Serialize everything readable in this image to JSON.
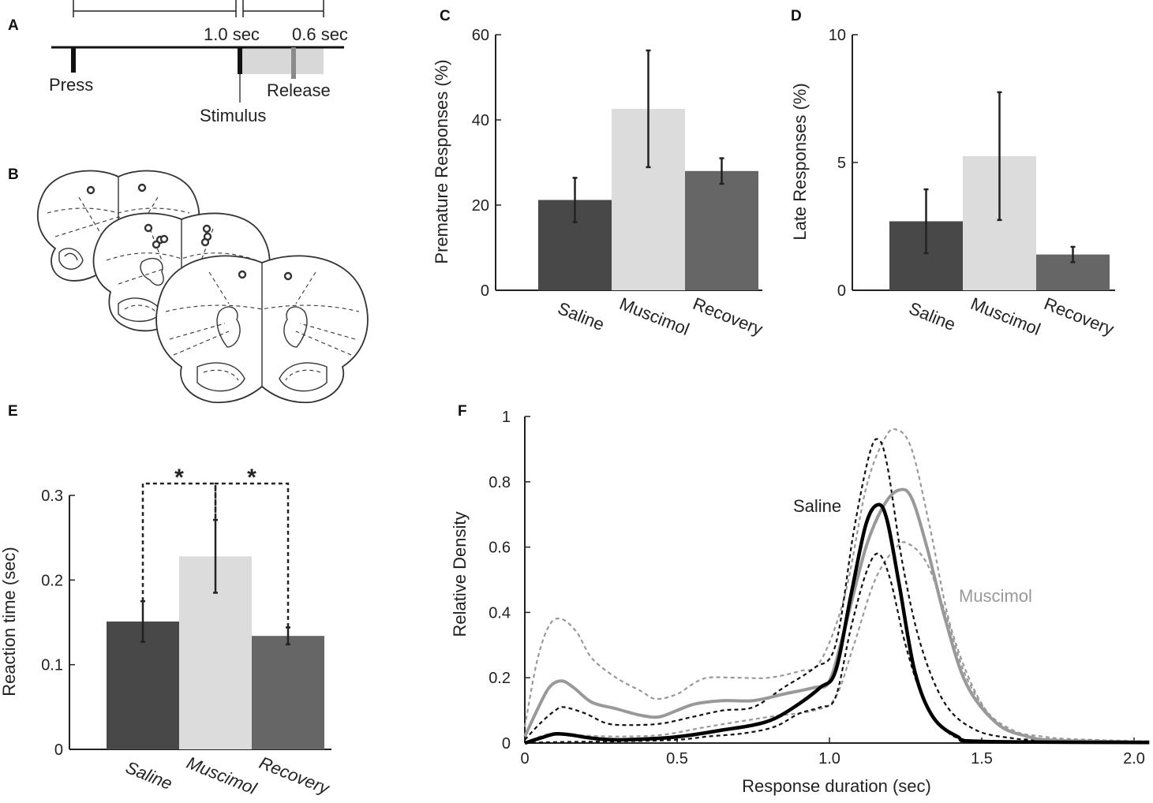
{
  "panels": {
    "a": "A",
    "b": "B",
    "c": "C",
    "d": "D",
    "e": "E",
    "f": "F"
  },
  "timeline": {
    "interval1": "1.0 sec",
    "interval2": "0.6 sec",
    "press": "Press",
    "stimulus": "Stimulus",
    "release": "Release"
  },
  "chart_data": [
    {
      "id": "C",
      "type": "bar",
      "categories": [
        "Saline",
        "Muscimol",
        "Recovery"
      ],
      "values": [
        21.2,
        42.6,
        28.0
      ],
      "errors": [
        5.2,
        13.7,
        3.0
      ],
      "colors": [
        "#484848",
        "#dcdcdc",
        "#666666"
      ],
      "ylabel": "Premature Responses (%)",
      "ylim": [
        0,
        60
      ],
      "yticks": [
        "0",
        "20",
        "40",
        "60"
      ]
    },
    {
      "id": "D",
      "type": "bar",
      "categories": [
        "Saline",
        "Muscimol",
        "Recovery"
      ],
      "values": [
        2.7,
        5.25,
        1.4
      ],
      "errors": [
        1.25,
        2.5,
        0.3
      ],
      "colors": [
        "#484848",
        "#dcdcdc",
        "#666666"
      ],
      "ylabel": "Late Responses (%)",
      "ylim": [
        0,
        10
      ],
      "yticks": [
        "0",
        "5",
        "10"
      ]
    },
    {
      "id": "E",
      "type": "bar",
      "categories": [
        "Saline",
        "Muscimol",
        "Recovery"
      ],
      "values": [
        0.151,
        0.228,
        0.134
      ],
      "errors": [
        0.024,
        0.043,
        0.01
      ],
      "colors": [
        "#484848",
        "#dcdcdc",
        "#666666"
      ],
      "ylabel": "Reaction time (sec)",
      "ylim": [
        0,
        0.3
      ],
      "yticks": [
        "0",
        "0.1",
        "0.2",
        "0.3"
      ],
      "significance": [
        {
          "from": "Saline",
          "to": "Muscimol",
          "label": "*"
        },
        {
          "from": "Muscimol",
          "to": "Recovery",
          "label": "*"
        }
      ]
    },
    {
      "id": "F",
      "type": "line",
      "xlabel": "Response duration (sec)",
      "ylabel": "Relative Density",
      "xlim": [
        0,
        2.05
      ],
      "ylim": [
        0,
        1
      ],
      "xticks": [
        "0",
        "0.5",
        "1.0",
        "1.5",
        "2.0"
      ],
      "yticks": [
        "0",
        "0.2",
        "0.4",
        "0.6",
        "0.8",
        "1"
      ],
      "series": [
        {
          "name": "Muscimol upper",
          "color": "#999999",
          "style": "dashed",
          "width": 2.2,
          "points": [
            [
              0,
              0.05
            ],
            [
              0.04,
              0.25
            ],
            [
              0.08,
              0.36
            ],
            [
              0.12,
              0.38
            ],
            [
              0.17,
              0.34
            ],
            [
              0.22,
              0.26
            ],
            [
              0.3,
              0.2
            ],
            [
              0.38,
              0.16
            ],
            [
              0.43,
              0.135
            ],
            [
              0.5,
              0.15
            ],
            [
              0.55,
              0.18
            ],
            [
              0.6,
              0.2
            ],
            [
              0.7,
              0.2
            ],
            [
              0.8,
              0.2
            ],
            [
              0.9,
              0.22
            ],
            [
              0.97,
              0.25
            ],
            [
              1.05,
              0.45
            ],
            [
              1.12,
              0.78
            ],
            [
              1.18,
              0.93
            ],
            [
              1.22,
              0.96
            ],
            [
              1.27,
              0.9
            ],
            [
              1.33,
              0.66
            ],
            [
              1.4,
              0.35
            ],
            [
              1.5,
              0.12
            ],
            [
              1.6,
              0.04
            ],
            [
              1.7,
              0.02
            ],
            [
              1.8,
              0.012
            ],
            [
              2.05,
              0.005
            ]
          ]
        },
        {
          "name": "Muscimol lower",
          "color": "#999999",
          "style": "dashed",
          "width": 2.2,
          "points": [
            [
              0,
              0
            ],
            [
              0.05,
              0.02
            ],
            [
              0.1,
              0.03
            ],
            [
              0.15,
              0.025
            ],
            [
              0.3,
              0.02
            ],
            [
              0.45,
              0.025
            ],
            [
              0.6,
              0.05
            ],
            [
              0.8,
              0.08
            ],
            [
              0.95,
              0.1
            ],
            [
              1.02,
              0.14
            ],
            [
              1.08,
              0.3
            ],
            [
              1.15,
              0.5
            ],
            [
              1.22,
              0.6
            ],
            [
              1.26,
              0.61
            ],
            [
              1.32,
              0.55
            ],
            [
              1.38,
              0.4
            ],
            [
              1.45,
              0.2
            ],
            [
              1.55,
              0.06
            ],
            [
              1.65,
              0.02
            ],
            [
              1.8,
              0.008
            ],
            [
              2.05,
              0.003
            ]
          ]
        },
        {
          "name": "Saline upper",
          "color": "#111111",
          "style": "dashed",
          "width": 2.2,
          "points": [
            [
              0,
              0.01
            ],
            [
              0.05,
              0.06
            ],
            [
              0.1,
              0.1
            ],
            [
              0.13,
              0.11
            ],
            [
              0.2,
              0.09
            ],
            [
              0.27,
              0.06
            ],
            [
              0.35,
              0.055
            ],
            [
              0.45,
              0.06
            ],
            [
              0.55,
              0.08
            ],
            [
              0.65,
              0.1
            ],
            [
              0.75,
              0.11
            ],
            [
              0.85,
              0.17
            ],
            [
              0.95,
              0.23
            ],
            [
              1.02,
              0.3
            ],
            [
              1.08,
              0.65
            ],
            [
              1.13,
              0.88
            ],
            [
              1.16,
              0.93
            ],
            [
              1.19,
              0.85
            ],
            [
              1.24,
              0.55
            ],
            [
              1.3,
              0.3
            ],
            [
              1.38,
              0.12
            ],
            [
              1.48,
              0.04
            ],
            [
              1.6,
              0.015
            ],
            [
              1.7,
              0.01
            ],
            [
              2.05,
              0.005
            ]
          ]
        },
        {
          "name": "Saline lower",
          "color": "#111111",
          "style": "dashed",
          "width": 2.2,
          "points": [
            [
              0,
              0
            ],
            [
              0.1,
              0.003
            ],
            [
              0.3,
              0.005
            ],
            [
              0.5,
              0.01
            ],
            [
              0.6,
              0.02
            ],
            [
              0.72,
              0.03
            ],
            [
              0.82,
              0.05
            ],
            [
              0.9,
              0.09
            ],
            [
              0.97,
              0.11
            ],
            [
              1.02,
              0.14
            ],
            [
              1.07,
              0.35
            ],
            [
              1.12,
              0.52
            ],
            [
              1.16,
              0.58
            ],
            [
              1.2,
              0.5
            ],
            [
              1.25,
              0.3
            ],
            [
              1.31,
              0.13
            ],
            [
              1.38,
              0.04
            ],
            [
              1.45,
              0.01
            ],
            [
              1.6,
              0.003
            ],
            [
              2.05,
              0.002
            ]
          ]
        },
        {
          "name": "Muscimol",
          "color": "#999999",
          "style": "solid",
          "width": 4,
          "points": [
            [
              0,
              0.02
            ],
            [
              0.04,
              0.1
            ],
            [
              0.08,
              0.17
            ],
            [
              0.12,
              0.19
            ],
            [
              0.16,
              0.17
            ],
            [
              0.22,
              0.125
            ],
            [
              0.3,
              0.105
            ],
            [
              0.38,
              0.085
            ],
            [
              0.44,
              0.08
            ],
            [
              0.5,
              0.1
            ],
            [
              0.56,
              0.12
            ],
            [
              0.65,
              0.13
            ],
            [
              0.75,
              0.13
            ],
            [
              0.85,
              0.15
            ],
            [
              0.95,
              0.17
            ],
            [
              1.0,
              0.19
            ],
            [
              1.05,
              0.35
            ],
            [
              1.12,
              0.6
            ],
            [
              1.18,
              0.73
            ],
            [
              1.23,
              0.775
            ],
            [
              1.27,
              0.75
            ],
            [
              1.32,
              0.6
            ],
            [
              1.38,
              0.38
            ],
            [
              1.45,
              0.18
            ],
            [
              1.55,
              0.06
            ],
            [
              1.65,
              0.02
            ],
            [
              1.75,
              0.008
            ],
            [
              2.05,
              0.003
            ]
          ]
        },
        {
          "name": "Saline",
          "color": "#000000",
          "style": "solid",
          "width": 4.5,
          "points": [
            [
              0,
              0
            ],
            [
              0.05,
              0.015
            ],
            [
              0.1,
              0.028
            ],
            [
              0.15,
              0.025
            ],
            [
              0.22,
              0.015
            ],
            [
              0.3,
              0.01
            ],
            [
              0.45,
              0.015
            ],
            [
              0.55,
              0.025
            ],
            [
              0.65,
              0.04
            ],
            [
              0.75,
              0.055
            ],
            [
              0.82,
              0.075
            ],
            [
              0.9,
              0.12
            ],
            [
              0.97,
              0.17
            ],
            [
              1.02,
              0.22
            ],
            [
              1.07,
              0.45
            ],
            [
              1.12,
              0.67
            ],
            [
              1.16,
              0.73
            ],
            [
              1.19,
              0.68
            ],
            [
              1.23,
              0.48
            ],
            [
              1.28,
              0.22
            ],
            [
              1.34,
              0.08
            ],
            [
              1.42,
              0.02
            ],
            [
              1.5,
              0.005
            ],
            [
              2.05,
              0.002
            ]
          ]
        }
      ],
      "annotations": [
        "Saline",
        "Muscimol"
      ]
    }
  ]
}
